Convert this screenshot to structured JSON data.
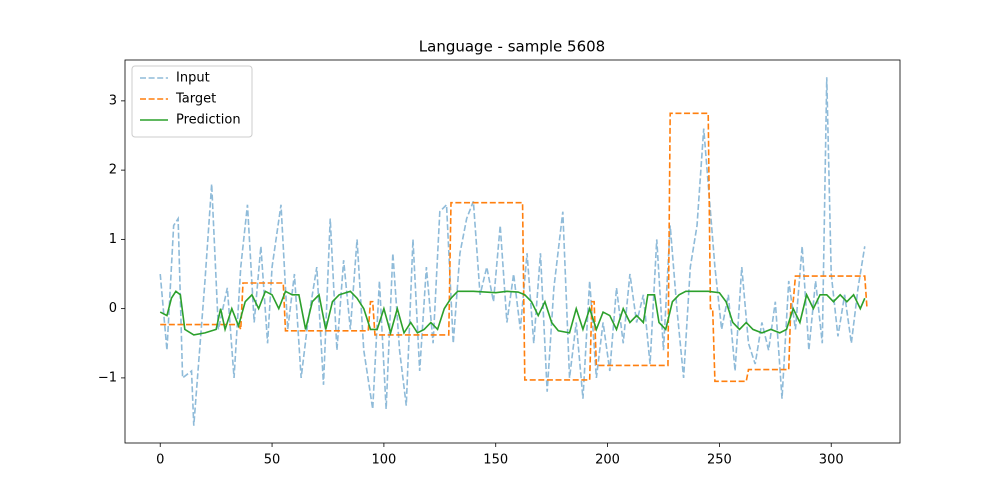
{
  "chart_data": {
    "type": "line",
    "title": "Language - sample 5608",
    "xlim": [
      -15.75,
      330.75
    ],
    "ylim": [
      -1.94,
      3.59
    ],
    "xticks": [
      0,
      50,
      100,
      150,
      200,
      250,
      300
    ],
    "yticks": [
      {
        "value": -1,
        "label": "−1"
      },
      0,
      1,
      2,
      3
    ],
    "legend": "upper left",
    "series": [
      {
        "name": "Input",
        "color": "#1f77b4",
        "alpha": 0.5,
        "dashed": true,
        "x": [
          0,
          3,
          6,
          8,
          10,
          14,
          15,
          20,
          23,
          26,
          30,
          33,
          36,
          39,
          42,
          45,
          48,
          50,
          54,
          57,
          60,
          63,
          66,
          70,
          73,
          76,
          79,
          82,
          85,
          88,
          91,
          95,
          98,
          101,
          104,
          107,
          110,
          113,
          116,
          119,
          122,
          125,
          128,
          131,
          134,
          137,
          140,
          143,
          146,
          149,
          152,
          155,
          158,
          161,
          164,
          167,
          170,
          173,
          176,
          180,
          183,
          186,
          189,
          192,
          195,
          198,
          201,
          204,
          207,
          210,
          213,
          216,
          219,
          222,
          225,
          228,
          231,
          234,
          237,
          240,
          243,
          245,
          248,
          251,
          254,
          257,
          260,
          263,
          266,
          269,
          272,
          275,
          278,
          281,
          284,
          287,
          290,
          293,
          296,
          298,
          300,
          303,
          306,
          309,
          312,
          315
        ],
        "values": [
          0.5,
          -0.6,
          1.2,
          1.3,
          -1.0,
          -0.9,
          -1.69,
          0.4,
          1.8,
          -0.3,
          0.3,
          -1.0,
          0.6,
          1.5,
          -0.2,
          0.9,
          -0.5,
          0.6,
          1.5,
          -0.3,
          0.5,
          -1.0,
          -0.2,
          0.6,
          -1.1,
          1.3,
          -0.6,
          0.7,
          -0.3,
          1.0,
          -0.6,
          -1.45,
          0.4,
          -1.45,
          0.8,
          -0.6,
          -1.4,
          1.0,
          -0.9,
          0.6,
          -0.5,
          1.4,
          1.5,
          -0.5,
          0.8,
          1.3,
          1.55,
          0.2,
          0.6,
          0.1,
          1.2,
          -0.2,
          0.5,
          -0.3,
          0.8,
          -0.5,
          0.8,
          -1.2,
          0.3,
          1.4,
          -1.0,
          -0.2,
          -1.3,
          0.4,
          -1.0,
          -0.2,
          -0.9,
          0.3,
          -0.5,
          0.5,
          -0.2,
          0.2,
          -0.8,
          1.0,
          -0.6,
          1.2,
          0.0,
          -1.0,
          0.6,
          1.2,
          2.6,
          1.8,
          0.6,
          -0.3,
          0.2,
          -0.9,
          0.6,
          -0.5,
          -0.8,
          -0.2,
          -0.6,
          0.1,
          -1.3,
          0.4,
          -0.3,
          0.9,
          -0.6,
          0.4,
          -0.5,
          3.34,
          0.5,
          -0.4,
          0.2,
          -0.5,
          0.3,
          0.9
        ]
      },
      {
        "name": "Target",
        "color": "#ff7f0e",
        "alpha": 1,
        "dashed": true,
        "x": [
          0,
          35,
          36,
          37,
          55,
          56,
          93,
          94,
          95,
          96,
          129,
          130,
          162,
          163,
          192,
          193,
          194,
          195,
          227,
          228,
          245,
          246,
          247,
          248,
          262,
          263,
          281,
          282,
          283,
          284,
          315,
          316
        ],
        "values": [
          -0.23,
          -0.23,
          -0.3,
          0.37,
          0.37,
          -0.32,
          -0.32,
          0.1,
          0.1,
          -0.38,
          -0.38,
          1.53,
          1.53,
          -1.03,
          -1.03,
          0.1,
          0.1,
          -0.82,
          -0.82,
          2.82,
          2.82,
          0.0,
          0.0,
          -1.05,
          -1.05,
          -0.88,
          -0.88,
          0.1,
          0.1,
          0.47,
          0.47,
          0.0
        ]
      },
      {
        "name": "Prediction",
        "color": "#2ca02c",
        "alpha": 1,
        "dashed": false,
        "x": [
          0,
          3,
          5,
          7,
          9,
          11,
          15,
          20,
          25,
          27,
          29,
          32,
          35,
          38,
          41,
          44,
          47,
          50,
          53,
          56,
          59,
          62,
          65,
          68,
          71,
          74,
          77,
          80,
          85,
          88,
          91,
          94,
          97,
          100,
          103,
          106,
          109,
          112,
          115,
          118,
          121,
          124,
          127,
          130,
          133,
          140,
          150,
          155,
          160,
          163,
          166,
          169,
          172,
          175,
          178,
          183,
          186,
          189,
          192,
          195,
          198,
          201,
          204,
          207,
          210,
          213,
          216,
          218,
          221,
          223,
          226,
          229,
          232,
          235,
          240,
          245,
          250,
          253,
          256,
          259,
          262,
          265,
          269,
          273,
          277,
          280,
          283,
          286,
          289,
          292,
          295,
          298,
          301,
          304,
          307,
          310,
          313,
          315
        ],
        "values": [
          -0.05,
          -0.1,
          0.15,
          0.25,
          0.2,
          -0.3,
          -0.38,
          -0.35,
          -0.3,
          0.0,
          -0.3,
          0.0,
          -0.25,
          0.1,
          0.2,
          0.0,
          0.25,
          0.2,
          0.0,
          0.25,
          0.2,
          0.2,
          -0.3,
          0.1,
          0.2,
          -0.3,
          0.1,
          0.2,
          0.25,
          0.15,
          0.0,
          -0.3,
          -0.3,
          0.0,
          -0.35,
          0.0,
          -0.35,
          -0.2,
          -0.35,
          -0.3,
          -0.2,
          -0.3,
          0.0,
          0.15,
          0.25,
          0.25,
          0.23,
          0.25,
          0.24,
          0.2,
          0.1,
          -0.1,
          0.1,
          -0.2,
          -0.32,
          -0.35,
          0.0,
          -0.3,
          0.0,
          -0.3,
          -0.05,
          -0.1,
          -0.3,
          0.0,
          -0.2,
          -0.1,
          -0.2,
          0.2,
          0.2,
          -0.2,
          -0.3,
          0.1,
          0.2,
          0.25,
          0.25,
          0.25,
          0.23,
          0.1,
          -0.2,
          -0.3,
          -0.2,
          -0.3,
          -0.35,
          -0.3,
          -0.35,
          -0.3,
          0.0,
          -0.2,
          0.2,
          0.0,
          0.2,
          0.2,
          0.1,
          0.2,
          0.1,
          0.2,
          0.0,
          0.15
        ]
      }
    ]
  }
}
